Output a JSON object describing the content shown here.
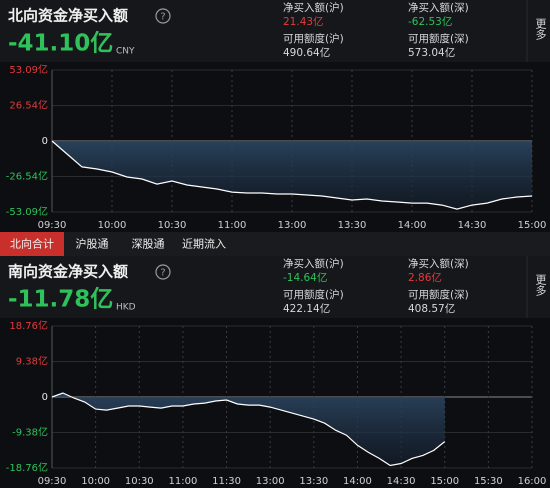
{
  "north": {
    "title": "北向资金净买入额",
    "help": "?",
    "net_value": "-41.10亿",
    "currency": "CNY",
    "more": "更多",
    "value_color": "#2fc25b",
    "stats": [
      {
        "label": "净买入额(沪)",
        "value": "21.43亿",
        "color": "#e23b3b"
      },
      {
        "label": "净买入额(深)",
        "value": "-62.53亿",
        "color": "#2fc25b"
      },
      {
        "label": "可用额度(沪)",
        "value": "490.64亿",
        "color": "#d8d8d8"
      },
      {
        "label": "可用额度(深)",
        "value": "573.04亿",
        "color": "#d8d8d8"
      }
    ],
    "chart": {
      "type": "line",
      "color": "#ffffff",
      "grid": true,
      "categories": [
        "09:30",
        null,
        null,
        null,
        "10:00",
        null,
        null,
        null,
        "10:30",
        null,
        null,
        null,
        "11:00",
        null,
        null,
        null,
        "13:00",
        null,
        null,
        null,
        "13:30",
        null,
        null,
        null,
        "14:00",
        null,
        null,
        null,
        "14:30",
        null,
        null,
        null,
        "15:00"
      ],
      "values": [
        0,
        -9.7,
        -19.4,
        -20.9,
        -23.2,
        -26.9,
        -28.4,
        -32.2,
        -29.9,
        -32.9,
        -34.4,
        -35.9,
        -38.2,
        -38.9,
        -38.9,
        -39.6,
        -39.6,
        -40.4,
        -41.1,
        -42.6,
        -44.1,
        -43.4,
        -44.9,
        -45.6,
        -46.4,
        -46.4,
        -47.9,
        -50.9,
        -47.9,
        -46.4,
        -43.4,
        -41.9,
        -41.1
      ],
      "ylim": [
        -53.09,
        53.09
      ],
      "yticks": [
        {
          "value": 53.09,
          "label": "53.09亿"
        },
        {
          "value": 26.54,
          "label": "26.54亿"
        },
        0,
        {
          "value": -26.54,
          "label": "-26.54亿"
        },
        {
          "value": -53.09,
          "label": "-53.09亿"
        }
      ]
    }
  },
  "tabs": [
    "北向合计",
    "沪股通",
    "深股通",
    "近期流入"
  ],
  "south": {
    "title": "南向资金净买入额",
    "help": "?",
    "net_value": "-11.78亿",
    "currency": "HKD",
    "more": "更多",
    "value_color": "#2fc25b",
    "stats": [
      {
        "label": "净买入额(沪)",
        "value": "-14.64亿",
        "color": "#2fc25b"
      },
      {
        "label": "净买入额(深)",
        "value": "2.86亿",
        "color": "#e23b3b"
      },
      {
        "label": "可用额度(沪)",
        "value": "422.14亿",
        "color": "#d8d8d8"
      },
      {
        "label": "可用额度(深)",
        "value": "408.57亿",
        "color": "#d8d8d8"
      }
    ],
    "chart": {
      "type": "line",
      "color": "#ffffff",
      "grid": true,
      "categories": [
        "09:30",
        null,
        null,
        null,
        "10:00",
        null,
        null,
        null,
        "10:30",
        null,
        null,
        null,
        "11:00",
        null,
        null,
        null,
        "11:30",
        null,
        null,
        null,
        "13:00",
        null,
        null,
        null,
        "13:30",
        null,
        null,
        null,
        "14:00",
        null,
        null,
        null,
        "14:30",
        null,
        null,
        null,
        "15:00",
        null,
        null,
        null,
        "15:30",
        null,
        null,
        null,
        "16:00"
      ],
      "values": [
        0,
        1.06,
        -0.27,
        -1.33,
        -3.19,
        -3.46,
        -2.93,
        -2.39,
        -2.39,
        -2.66,
        -2.93,
        -2.39,
        -2.39,
        -1.86,
        -1.6,
        -1.06,
        -0.8,
        -1.86,
        -2.13,
        -2.13,
        -2.66,
        -3.46,
        -4.26,
        -5.05,
        -5.85,
        -6.92,
        -8.78,
        -10.1,
        -12.77,
        -14.63,
        -16.23,
        -18.1,
        -17.56,
        -16.23,
        -15.43,
        -14.1,
        -11.78,
        null,
        null,
        null,
        null,
        null,
        null,
        null,
        null
      ],
      "ylim": [
        -18.76,
        18.76
      ],
      "yticks": [
        {
          "value": 18.76,
          "label": "18.76亿"
        },
        {
          "value": 9.38,
          "label": "9.38亿"
        },
        0,
        {
          "value": -9.38,
          "label": "-9.38亿"
        },
        {
          "value": -18.76,
          "label": "-18.76亿"
        }
      ]
    }
  }
}
